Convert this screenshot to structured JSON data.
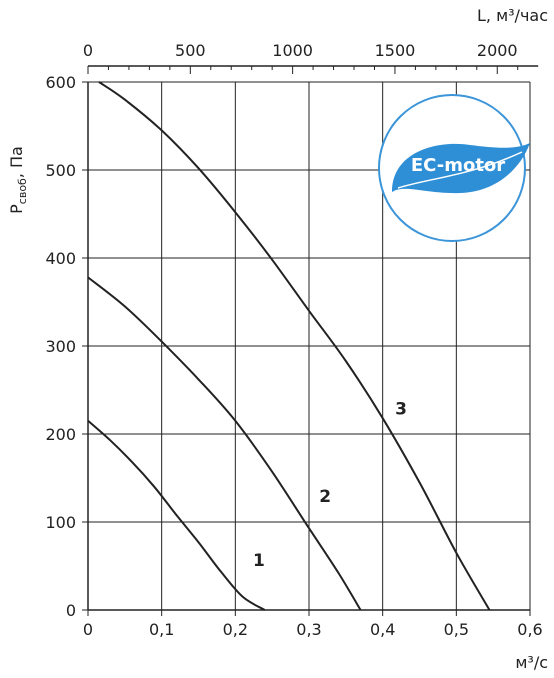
{
  "chart_data": {
    "type": "line",
    "ylabel_main": "P",
    "ylabel_sub": "своб",
    "ylabel_unit": ", Па",
    "xlabel_bottom": "м³/с",
    "xlabel_top": "L, м³/час",
    "ylim": [
      0,
      600
    ],
    "xlim": [
      0,
      0.6
    ],
    "y_ticks": [
      0,
      100,
      200,
      300,
      400,
      500,
      600
    ],
    "y_tick_labels": [
      "0",
      "100",
      "200",
      "300",
      "400",
      "500",
      "600"
    ],
    "x_ticks": [
      0,
      0.1,
      0.2,
      0.3,
      0.4,
      0.5,
      0.6
    ],
    "x_tick_labels": [
      "0",
      "0,1",
      "0,2",
      "0,3",
      "0,4",
      "0,5",
      "0,6"
    ],
    "x_top_ticks": [
      0,
      500,
      1000,
      1500,
      2000
    ],
    "x_top_tick_labels": [
      "0",
      "500",
      "1000",
      "1500",
      "2000"
    ],
    "x_top_scale": 3600,
    "grid": true,
    "series": [
      {
        "name": "1",
        "x": [
          0,
          0.03,
          0.06,
          0.09,
          0.12,
          0.15,
          0.18,
          0.21,
          0.24
        ],
        "y": [
          215,
          193,
          168,
          140,
          108,
          77,
          44,
          15,
          0
        ]
      },
      {
        "name": "2",
        "x": [
          0,
          0.05,
          0.1,
          0.15,
          0.2,
          0.25,
          0.3,
          0.34,
          0.37
        ],
        "y": [
          378,
          345,
          305,
          262,
          215,
          157,
          93,
          42,
          0
        ]
      },
      {
        "name": "3",
        "x": [
          0.015,
          0.05,
          0.1,
          0.15,
          0.2,
          0.25,
          0.3,
          0.35,
          0.4,
          0.45,
          0.5,
          0.545
        ],
        "y": [
          600,
          580,
          545,
          502,
          452,
          398,
          340,
          283,
          218,
          145,
          65,
          0
        ]
      }
    ],
    "curve_labels": [
      {
        "text": "1",
        "x": 0.232,
        "y": 50
      },
      {
        "text": "2",
        "x": 0.322,
        "y": 123
      },
      {
        "text": "3",
        "x": 0.425,
        "y": 222
      }
    ]
  },
  "badge": {
    "text": "EC-motor",
    "icon": "leaf-icon",
    "primary_color": "#2f8fd6",
    "ring_color": "#3c95d8"
  }
}
